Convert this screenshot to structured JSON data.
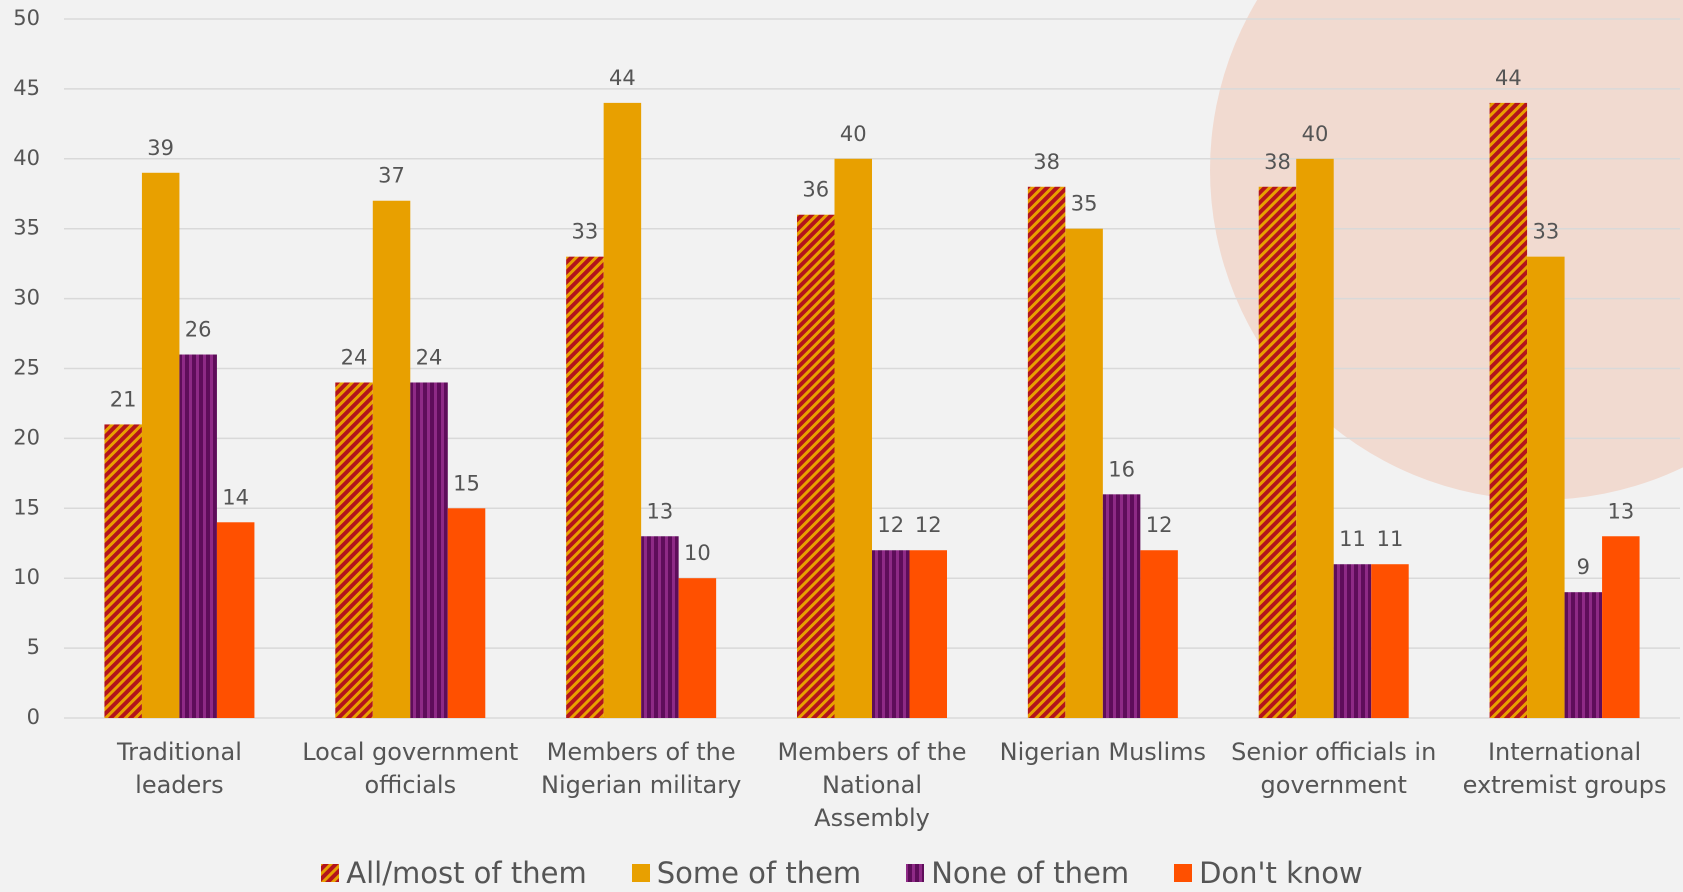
{
  "chart_data": {
    "type": "bar",
    "categories": [
      "Traditional leaders",
      "Local government officials",
      "Members of the Nigerian military",
      "Members of the National Assembly",
      "Nigerian Muslims",
      "Senior officials in government",
      "International extremist groups"
    ],
    "series": [
      {
        "name": "All/most of them",
        "color": "#b3141c",
        "hatch": "#e8a000",
        "values": [
          21,
          24,
          33,
          36,
          38,
          38,
          44
        ]
      },
      {
        "name": "Some of them",
        "color": "#e8a000",
        "values": [
          39,
          37,
          44,
          40,
          35,
          40,
          33
        ]
      },
      {
        "name": "None of them",
        "color": "#5e0d5a",
        "hatch": "#8e2a86",
        "values": [
          26,
          24,
          13,
          12,
          16,
          11,
          9
        ]
      },
      {
        "name": "Don't know",
        "color": "#ff5000",
        "values": [
          14,
          15,
          10,
          12,
          12,
          11,
          13
        ]
      }
    ],
    "ylim": [
      0,
      50
    ],
    "yticks": [
      0,
      5,
      10,
      15,
      20,
      25,
      30,
      35,
      40,
      45,
      50
    ],
    "grid": true
  }
}
